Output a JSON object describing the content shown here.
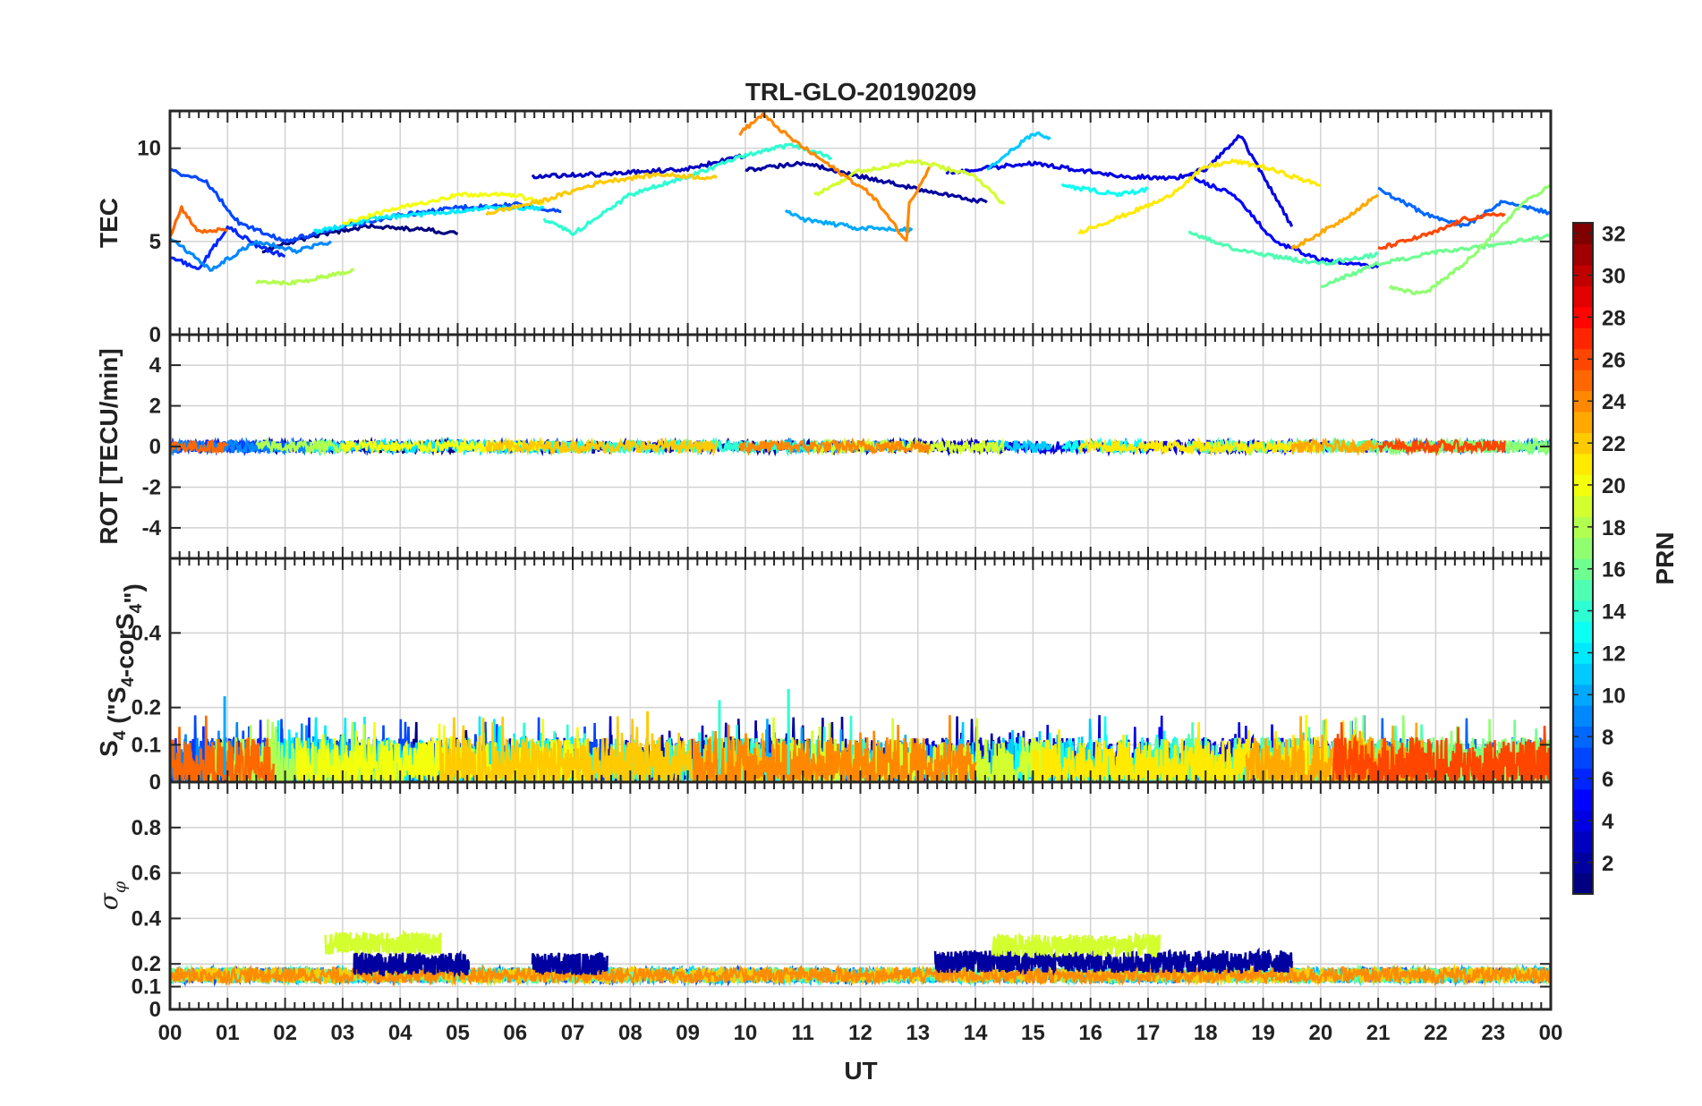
{
  "chart_data": {
    "type": "line",
    "title": "TRL-GLO-20190209",
    "xlabel": "UT",
    "xlim": [
      0,
      24
    ],
    "x_tick_labels": [
      "00",
      "01",
      "02",
      "03",
      "04",
      "05",
      "06",
      "07",
      "08",
      "09",
      "10",
      "11",
      "12",
      "13",
      "14",
      "15",
      "16",
      "17",
      "18",
      "19",
      "20",
      "21",
      "22",
      "23",
      "00"
    ],
    "colorbar": {
      "label": "PRN",
      "range": [
        1,
        32
      ],
      "tick_labels": [
        "2",
        "4",
        "6",
        "8",
        "10",
        "12",
        "14",
        "16",
        "18",
        "20",
        "22",
        "24",
        "26",
        "28",
        "30",
        "32"
      ],
      "colormap": "jet"
    },
    "panels": [
      {
        "id": "tec",
        "ylabel": "TEC",
        "ylim": [
          0,
          12
        ],
        "yticks": [
          0,
          5,
          10
        ],
        "ytick_labels": [
          "0",
          "5",
          "10"
        ],
        "series": [
          {
            "name": "PRN 1",
            "prn": 1,
            "x": [
              1.6,
              2.5,
              3.5,
              4.5,
              5.0
            ],
            "values": [
              4.5,
              5.3,
              5.8,
              5.6,
              5.4
            ]
          },
          {
            "name": "PRN 2",
            "prn": 2,
            "x": [
              10.0,
              11.0,
              12.0,
              13.0,
              14.2
            ],
            "values": [
              8.8,
              9.2,
              8.5,
              7.8,
              7.1
            ]
          },
          {
            "name": "PRN 3",
            "prn": 3,
            "x": [
              6.3,
              7.5,
              9.0,
              10.0
            ],
            "values": [
              8.5,
              8.6,
              8.9,
              9.6
            ]
          },
          {
            "name": "PRN 4",
            "prn": 4,
            "x": [
              13.5,
              15.0,
              16.5,
              17.5,
              18.0,
              18.6,
              19.5
            ],
            "values": [
              8.7,
              9.2,
              8.5,
              8.4,
              8.9,
              10.7,
              5.8
            ]
          },
          {
            "name": "PRN 5",
            "prn": 5,
            "x": [
              17.7,
              18.5,
              19.2,
              20.0,
              21.0
            ],
            "values": [
              8.5,
              7.5,
              5.0,
              4.0,
              3.6
            ]
          },
          {
            "name": "PRN 6",
            "prn": 6,
            "x": [
              0.0,
              0.5,
              1.0,
              1.5,
              2.0
            ],
            "values": [
              4.2,
              3.5,
              5.8,
              4.8,
              4.2
            ]
          },
          {
            "name": "PRN 7",
            "prn": 7,
            "x": [
              0.0,
              0.6,
              1.2,
              2.0,
              3.0,
              4.0,
              5.0,
              6.0,
              6.8
            ],
            "values": [
              8.8,
              8.3,
              6.0,
              5.0,
              5.8,
              6.4,
              6.8,
              7.0,
              6.6
            ]
          },
          {
            "name": "PRN 8",
            "prn": 8,
            "x": [
              21.0,
              21.8,
              22.5,
              23.2,
              24.0
            ],
            "values": [
              7.8,
              6.5,
              5.8,
              7.2,
              6.5
            ]
          },
          {
            "name": "PRN 9",
            "prn": 9,
            "x": [
              0.0,
              0.7,
              1.5,
              2.2,
              2.8
            ],
            "values": [
              5.2,
              3.5,
              5.0,
              4.5,
              5.0
            ]
          },
          {
            "name": "PRN 10",
            "prn": 10,
            "x": [
              10.7,
              11.0,
              12.0,
              12.9
            ],
            "values": [
              6.6,
              6.2,
              5.7,
              5.6
            ]
          },
          {
            "name": "PRN 11",
            "prn": 11,
            "x": [
              14.2,
              15.0,
              15.3
            ],
            "values": [
              8.8,
              10.8,
              10.6
            ]
          },
          {
            "name": "PRN 12",
            "prn": 12,
            "x": [
              2.5,
              3.5,
              4.5,
              5.5,
              6.5
            ],
            "values": [
              5.5,
              6.2,
              6.5,
              6.8,
              6.8
            ]
          },
          {
            "name": "PRN 13",
            "prn": 13,
            "x": [
              15.5,
              16.5,
              17.0
            ],
            "values": [
              8.0,
              7.5,
              7.8
            ]
          },
          {
            "name": "PRN 14",
            "prn": 14,
            "x": [
              6.5,
              7.0,
              8.0,
              9.0,
              10.0,
              10.8,
              11.5
            ],
            "values": [
              6.2,
              5.4,
              7.5,
              8.5,
              9.6,
              10.2,
              9.5
            ]
          },
          {
            "name": "PRN 15",
            "prn": 15,
            "x": [
              17.7,
              18.5,
              19.2,
              20.0,
              21.0
            ],
            "values": [
              5.5,
              4.6,
              4.2,
              3.8,
              4.3
            ]
          },
          {
            "name": "PRN 16",
            "prn": 16,
            "x": [
              20.0,
              21.0,
              22.0,
              23.0,
              24.0
            ],
            "values": [
              2.6,
              3.8,
              4.4,
              4.8,
              5.3
            ]
          },
          {
            "name": "PRN 17",
            "prn": 17,
            "x": [
              21.2,
              21.8,
              22.5,
              23.5,
              24.0
            ],
            "values": [
              2.5,
              2.2,
              3.8,
              7.0,
              8.0
            ]
          },
          {
            "name": "PRN 18",
            "prn": 18,
            "x": [
              1.5,
              2.2,
              2.8,
              3.2
            ],
            "values": [
              2.8,
              2.8,
              3.2,
              3.5
            ]
          },
          {
            "name": "PRN 19",
            "prn": 19,
            "x": [
              11.2,
              12.0,
              13.0,
              14.0,
              14.5
            ],
            "values": [
              7.5,
              8.8,
              9.3,
              8.5,
              7.0
            ]
          },
          {
            "name": "PRN 20",
            "prn": 20,
            "x": [
              3.0,
              4.0,
              5.0,
              6.0,
              6.5
            ],
            "values": [
              6.0,
              6.8,
              7.5,
              7.5,
              7.0
            ]
          },
          {
            "name": "PRN 21",
            "prn": 21,
            "x": [
              15.8,
              16.5,
              17.3,
              18.0,
              18.5,
              19.0,
              20.0
            ],
            "values": [
              5.5,
              6.3,
              7.3,
              9.0,
              9.3,
              9.0,
              8.0
            ]
          },
          {
            "name": "PRN 22",
            "prn": 22,
            "x": [
              5.5,
              6.5,
              7.5,
              8.5,
              9.5
            ],
            "values": [
              6.5,
              7.2,
              8.2,
              8.6,
              8.4
            ]
          },
          {
            "name": "PRN 23",
            "prn": 23,
            "x": [
              19.5,
              20.3,
              21.0
            ],
            "values": [
              4.6,
              6.0,
              7.5
            ]
          },
          {
            "name": "PRN 24",
            "prn": 24,
            "x": [
              9.9,
              10.3,
              10.8,
              11.5,
              12.2,
              12.8,
              12.85,
              13.2
            ],
            "values": [
              10.8,
              11.8,
              10.5,
              9.0,
              7.5,
              5.0,
              7.0,
              9.0
            ]
          },
          {
            "name": "PRN 25",
            "prn": 25,
            "x": [
              0.0,
              0.2,
              0.5,
              0.8,
              1.0
            ],
            "values": [
              5.3,
              6.8,
              5.5,
              5.6,
              5.6
            ]
          },
          {
            "name": "PRN 26",
            "prn": 26,
            "x": [
              21.0,
              22.0,
              22.5,
              23.2
            ],
            "values": [
              4.6,
              5.5,
              6.2,
              6.5
            ]
          }
        ]
      },
      {
        "id": "rot",
        "ylabel": "ROT [TECU/min]",
        "ylim": [
          -5.5,
          5.5
        ],
        "yticks": [
          -4,
          -2,
          0,
          2,
          4
        ],
        "ytick_labels": [
          "-4",
          "-2",
          "0",
          "2",
          "4"
        ],
        "typical_range": [
          -0.3,
          0.3
        ]
      },
      {
        "id": "s4",
        "ylabel": "S4 (\"S4-corS4\")",
        "ylim": [
          0,
          0.6
        ],
        "yticks": [
          0,
          0.1,
          0.2,
          0.4
        ],
        "ytick_labels": [
          "0",
          "0.1",
          "0.2",
          "0.4"
        ],
        "typical_range": [
          0,
          0.12
        ],
        "peak_values": [
          0.23,
          0.22,
          0.25,
          0.19,
          0.18
        ]
      },
      {
        "id": "sigma_phi",
        "ylabel": "σφ",
        "ylim": [
          0,
          1
        ],
        "yticks": [
          0,
          0.1,
          0.2,
          0.4,
          0.6,
          0.8
        ],
        "ytick_labels": [
          "0",
          "0.1",
          "0.2",
          "0.4",
          "0.6",
          "0.8"
        ],
        "baseline": 0.15,
        "elevated_segments": [
          {
            "prn": 19,
            "x_start": 2.7,
            "x_end": 4.7,
            "level": 0.29
          },
          {
            "prn": 2,
            "x_start": 3.2,
            "x_end": 5.2,
            "level": 0.2
          },
          {
            "prn": 2,
            "x_start": 6.3,
            "x_end": 7.6,
            "level": 0.2
          },
          {
            "prn": 2,
            "x_start": 13.3,
            "x_end": 19.5,
            "level": 0.21
          },
          {
            "prn": 19,
            "x_start": 14.3,
            "x_end": 17.2,
            "level": 0.28
          }
        ]
      }
    ]
  }
}
